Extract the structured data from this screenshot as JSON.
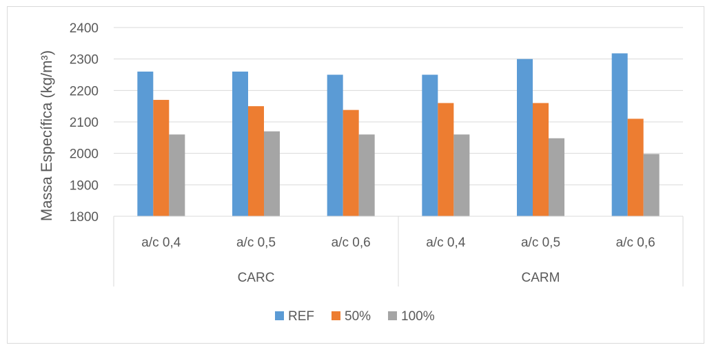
{
  "chart_data": {
    "type": "bar",
    "title": "",
    "ylabel": "Massa Específica (kg/m³)",
    "xlabel": "",
    "ylim": [
      1800,
      2400
    ],
    "yticks": [
      "1800",
      "1900",
      "2000",
      "2100",
      "2200",
      "2300",
      "2400"
    ],
    "grid": true,
    "legend_position": "bottom",
    "groups": [
      {
        "label": "CARC",
        "categories": [
          "a/c 0,4",
          "a/c 0,5",
          "a/c 0,6"
        ]
      },
      {
        "label": "CARM",
        "categories": [
          "a/c 0,4",
          "a/c 0,5",
          "a/c 0,6"
        ]
      }
    ],
    "series": [
      {
        "name": "REF",
        "color": "#5b9bd5",
        "values": [
          2260,
          2260,
          2250,
          2250,
          2300,
          2318
        ]
      },
      {
        "name": "50%",
        "color": "#ed7d31",
        "values": [
          2170,
          2150,
          2138,
          2160,
          2160,
          2110
        ]
      },
      {
        "name": "100%",
        "color": "#a5a5a5",
        "values": [
          2060,
          2070,
          2060,
          2060,
          2048,
          1998
        ]
      }
    ]
  }
}
